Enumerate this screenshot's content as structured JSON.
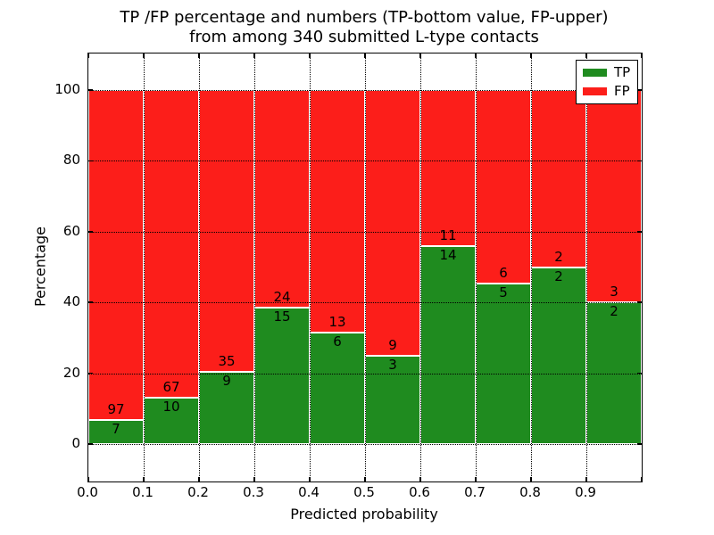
{
  "title": {
    "line1": "TP /FP percentage and numbers (TP-bottom value, FP-upper)",
    "line2": "from among 340 submitted L-type contacts"
  },
  "axes": {
    "xlabel": "Predicted probability",
    "ylabel": "Percentage",
    "x_tick_labels": [
      "0.0",
      "0.1",
      "0.2",
      "0.3",
      "0.4",
      "0.5",
      "0.6",
      "0.7",
      "0.8",
      "0.9"
    ],
    "y_tick_labels": [
      "0",
      "20",
      "40",
      "60",
      "80",
      "100"
    ],
    "y_tick_values": [
      0,
      20,
      40,
      60,
      80,
      100
    ]
  },
  "legend": {
    "items": [
      {
        "label": "TP",
        "color": "#1f8b1f"
      },
      {
        "label": "FP",
        "color": "#fc1e1a"
      }
    ]
  },
  "colors": {
    "tp_green": "#1f8b1f",
    "fp_red": "#fc1e1a",
    "grid": "#000000",
    "bar_edge": "#ffffff"
  },
  "chart_data": {
    "type": "bar",
    "stacked": true,
    "normalized_to_percent": 100,
    "title": "TP /FP percentage and numbers (TP-bottom value, FP-upper) from among 340 submitted L-type contacts",
    "xlabel": "Predicted probability",
    "ylabel": "Percentage",
    "bin_width": 0.1,
    "bin_starts": [
      0.0,
      0.1,
      0.2,
      0.3,
      0.4,
      0.5,
      0.6,
      0.7,
      0.8,
      0.9
    ],
    "series": [
      {
        "name": "TP",
        "color": "#1f8b1f",
        "values": [
          7,
          10,
          9,
          15,
          6,
          3,
          14,
          5,
          2,
          2
        ]
      },
      {
        "name": "FP",
        "color": "#fc1e1a",
        "values": [
          97,
          67,
          35,
          24,
          13,
          9,
          11,
          6,
          2,
          3
        ]
      }
    ],
    "tp_percent": [
      6.73,
      12.99,
      20.45,
      38.46,
      31.58,
      25.0,
      56.0,
      45.45,
      50.0,
      40.0
    ],
    "total_contacts": 340,
    "xlim": [
      0.0,
      1.0
    ],
    "ylim": [
      -11,
      110
    ],
    "grid": "dotted",
    "legend_position": "upper right"
  }
}
